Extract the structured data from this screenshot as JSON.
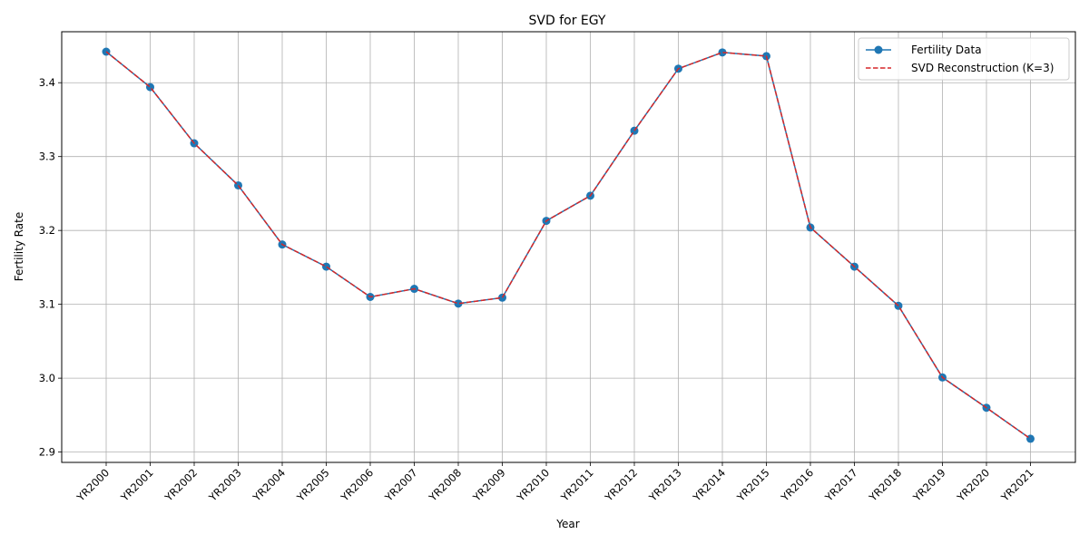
{
  "chart_data": {
    "type": "line",
    "title": "SVD for EGY",
    "xlabel": "Year",
    "ylabel": "Fertility Rate",
    "categories": [
      "YR2000",
      "YR2001",
      "YR2002",
      "YR2003",
      "YR2004",
      "YR2005",
      "YR2006",
      "YR2007",
      "YR2008",
      "YR2009",
      "YR2010",
      "YR2011",
      "YR2012",
      "YR2013",
      "YR2014",
      "YR2015",
      "YR2016",
      "YR2017",
      "YR2018",
      "YR2019",
      "YR2020",
      "YR2021"
    ],
    "yticks": [
      2.9,
      3.0,
      3.1,
      3.2,
      3.3,
      3.4
    ],
    "yticks_text": [
      "2.9",
      "3.0",
      "3.1",
      "3.2",
      "3.3",
      "3.4"
    ],
    "ylim": [
      2.886,
      3.469
    ],
    "grid": true,
    "legend": "top-right",
    "series": [
      {
        "name": "Fertility Data",
        "color": "#1f77b4",
        "style": "solid-marker",
        "values": [
          3.442,
          3.394,
          3.318,
          3.261,
          3.181,
          3.151,
          3.11,
          3.121,
          3.101,
          3.109,
          3.213,
          3.247,
          3.335,
          3.419,
          3.441,
          3.436,
          3.204,
          3.151,
          3.098,
          3.001,
          2.96,
          2.918
        ]
      },
      {
        "name": "SVD Reconstruction (K=3)",
        "color": "#d62728",
        "style": "dashed",
        "values": [
          3.442,
          3.394,
          3.318,
          3.261,
          3.181,
          3.151,
          3.11,
          3.121,
          3.101,
          3.109,
          3.213,
          3.247,
          3.335,
          3.419,
          3.441,
          3.436,
          3.204,
          3.151,
          3.098,
          3.001,
          2.96,
          2.918
        ]
      }
    ]
  }
}
